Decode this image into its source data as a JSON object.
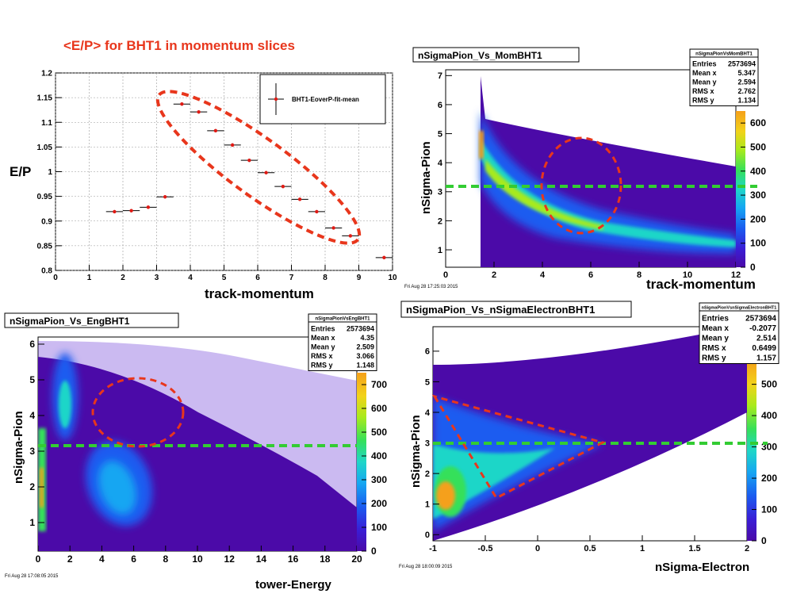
{
  "slide_title": "<E/P> for BHT1 in momentum slices",
  "colors": {
    "title_red": "#e8361c",
    "marker_red": "#e01a14",
    "ellipse_red": "#e8361c",
    "threshold_green": "#33cc33"
  },
  "chart_data": [
    {
      "type": "scatter",
      "title": "",
      "xlabel": "track-momentum",
      "ylabel": "E/P",
      "xlim": [
        0,
        10
      ],
      "ylim": [
        0.8,
        1.2
      ],
      "x_ticks": [
        "0",
        "1",
        "2",
        "3",
        "4",
        "5",
        "6",
        "7",
        "8",
        "9",
        "10"
      ],
      "y_ticks": [
        "0.8",
        "0.85",
        "0.9",
        "0.95",
        "1",
        "1.05",
        "1.1",
        "1.15",
        "1.2"
      ],
      "grid": true,
      "legend": {
        "placement": "top-right",
        "entries": [
          "BHT1-EoverP-fit-mean"
        ]
      },
      "series": [
        {
          "name": "BHT1-EoverP-fit-mean",
          "x": [
            1.75,
            2.25,
            2.75,
            3.25,
            3.75,
            4.25,
            4.75,
            5.25,
            5.75,
            6.25,
            6.75,
            7.25,
            7.75,
            8.25,
            8.75,
            9.75
          ],
          "y": [
            0.919,
            0.921,
            0.928,
            0.949,
            1.137,
            1.121,
            1.083,
            1.054,
            1.023,
            0.998,
            0.97,
            0.944,
            0.919,
            0.886,
            0.87,
            0.826
          ],
          "xerr": 0.25
        }
      ],
      "annotations": [
        "dashed ellipse around points from momentum 3.5 to 8.5"
      ]
    },
    {
      "type": "heatmap",
      "title": "nSigmaPion_Vs_MomBHT1",
      "xlabel": "track-momentum",
      "ylabel": "nSigma-Pion",
      "xlim": [
        0,
        12
      ],
      "ylim": [
        0.4,
        7.2
      ],
      "x_ticks": [
        "0",
        "2",
        "4",
        "6",
        "8",
        "10",
        "12"
      ],
      "y_ticks": [
        "1",
        "2",
        "3",
        "4",
        "5",
        "6",
        "7"
      ],
      "colorbar_ticks": [
        "0",
        "100",
        "200",
        "300",
        "400",
        "500",
        "600"
      ],
      "colorbar_partial": [
        "0",
        "0"
      ],
      "stats": {
        "name": "nSigmaPionVsMomBHT1",
        "rows": [
          [
            "Entries",
            "2573694"
          ],
          [
            "Mean x",
            "5.347"
          ],
          [
            "Mean y",
            "2.594"
          ],
          [
            "RMS x",
            "2.762"
          ],
          [
            "RMS y",
            "1.134"
          ]
        ]
      },
      "timestamp": "Fri Aug 28 17:25:03 2015",
      "threshold_y": 3,
      "annotations": [
        "dashed ellipse centered near momentum 5.8, nSigma 3"
      ]
    },
    {
      "type": "heatmap",
      "title": "nSigmaPion_Vs_EngBHT1",
      "xlabel": "tower-Energy",
      "ylabel": "nSigma-Pion",
      "xlim": [
        0,
        20
      ],
      "ylim": [
        0.2,
        6.2
      ],
      "x_ticks": [
        "0",
        "2",
        "4",
        "6",
        "8",
        "10",
        "12",
        "14",
        "16",
        "18",
        "20"
      ],
      "y_ticks": [
        "1",
        "2",
        "3",
        "4",
        "5",
        "6"
      ],
      "colorbar_ticks": [
        "0",
        "100",
        "200",
        "300",
        "400",
        "500",
        "600",
        "700"
      ],
      "colorbar_partial": [
        "0"
      ],
      "stats": {
        "name": "nSigmaPionVsEngBHT1",
        "rows": [
          [
            "Entries",
            "2573694"
          ],
          [
            "Mean x",
            "4.35"
          ],
          [
            "Mean y",
            "2.509"
          ],
          [
            "RMS x",
            "3.066"
          ],
          [
            "RMS y",
            "1.148"
          ]
        ]
      },
      "timestamp": "Fri Aug 28 17:08:05 2015",
      "threshold_y": 3,
      "annotations": [
        "dashed ellipse centered near tower-Energy 6.4, nSigma 4"
      ]
    },
    {
      "type": "heatmap",
      "title": "nSigmaPion_Vs_nSigmaElectronBHT1",
      "xlabel": "nSigma-Electron",
      "ylabel": "nSigma-Pion",
      "xlim": [
        -1,
        2
      ],
      "ylim": [
        -0.2,
        6.8
      ],
      "x_ticks": [
        "-1",
        "-0.5",
        "0",
        "0.5",
        "1",
        "1.5",
        "2"
      ],
      "y_ticks": [
        "0",
        "1",
        "2",
        "3",
        "4",
        "5",
        "6"
      ],
      "colorbar_ticks": [
        "0",
        "100",
        "200",
        "300",
        "400",
        "500"
      ],
      "colorbar_partial": [
        "0"
      ],
      "stats": {
        "name": "nSigmaPionVsnSigmaElectronBHT1",
        "rows": [
          [
            "Entries",
            "2573694"
          ],
          [
            "Mean x",
            "-0.2077"
          ],
          [
            "Mean y",
            "2.514"
          ],
          [
            "RMS x",
            "0.6499"
          ],
          [
            "RMS y",
            "1.157"
          ]
        ]
      },
      "timestamp": "Fri Aug 28 18:00:09 2015",
      "threshold_y": 3,
      "annotations": [
        "dashed triangle with vertices near (-1, 4.5), (-0.45, 1.2), (0.6, 3)"
      ]
    }
  ]
}
